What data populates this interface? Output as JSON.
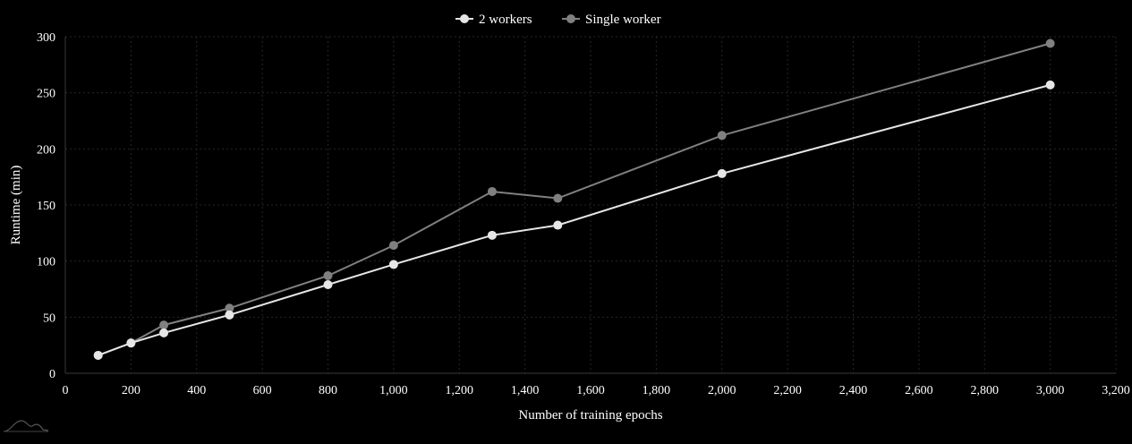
{
  "chart_data": {
    "type": "line",
    "title": "",
    "xlabel": "Number of training epochs",
    "ylabel": "Runtime (min)",
    "xlim": [
      0,
      3200
    ],
    "ylim": [
      0,
      300
    ],
    "x_ticks": [
      0,
      200,
      400,
      600,
      800,
      1000,
      1200,
      1400,
      1600,
      1800,
      2000,
      2200,
      2400,
      2600,
      2800,
      3000,
      3200
    ],
    "x_tick_labels": [
      "0",
      "200",
      "400",
      "600",
      "800",
      "1,000",
      "1,200",
      "1,400",
      "1,600",
      "1,800",
      "2,000",
      "2,200",
      "2,400",
      "2,600",
      "2,800",
      "3,000",
      "3,200"
    ],
    "y_ticks": [
      0,
      50,
      100,
      150,
      200,
      250,
      300
    ],
    "y_tick_labels": [
      "0",
      "50",
      "100",
      "150",
      "200",
      "250",
      "300"
    ],
    "grid": true,
    "legend_position": "top-center",
    "series": [
      {
        "name": "2 workers",
        "color": "#e6e6e6",
        "x": [
          100,
          200,
          300,
          500,
          800,
          1000,
          1300,
          1500,
          2000,
          3000
        ],
        "y": [
          16,
          27,
          36,
          52,
          79,
          97,
          123,
          132,
          178,
          257
        ]
      },
      {
        "name": "Single worker",
        "color": "#808080",
        "x": [
          100,
          200,
          300,
          500,
          800,
          1000,
          1300,
          1500,
          2000,
          3000
        ],
        "y": [
          16,
          27,
          43,
          58,
          87,
          114,
          162,
          156,
          212,
          294
        ]
      }
    ]
  }
}
